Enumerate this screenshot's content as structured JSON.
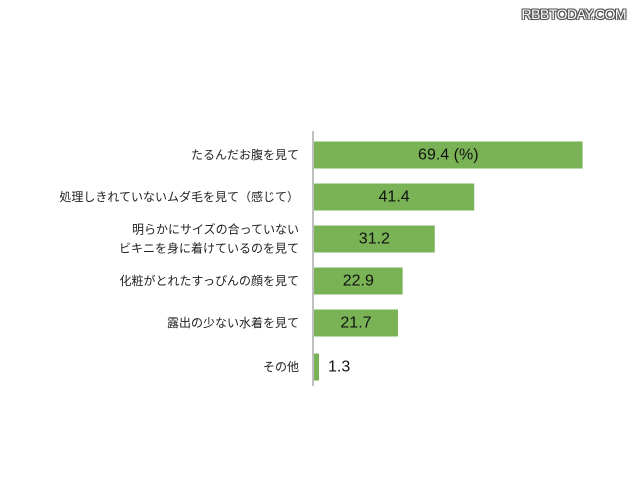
{
  "watermark": "RBBTODAY.COM",
  "chart_data": {
    "type": "bar",
    "orientation": "horizontal",
    "categories": [
      [
        "たるんだお腹を見て"
      ],
      [
        "処理しきれていないムダ毛を見て（感じて）"
      ],
      [
        "明らかにサイズの合っていない",
        "ビキニを身に着けているのを見て"
      ],
      [
        "化粧がとれたすっぴんの顔を見て"
      ],
      [
        "露出の少ない水着を見て"
      ],
      [
        "その他"
      ]
    ],
    "values": [
      69.4,
      41.4,
      31.2,
      22.9,
      21.7,
      1.3
    ],
    "data_labels": [
      "69.4 (%)",
      "41.4",
      "31.2",
      "22.9",
      "21.7",
      "1.3"
    ],
    "bar_color": "#7ab356",
    "xlim": [
      0,
      100
    ],
    "title": "",
    "xlabel": "",
    "ylabel": "",
    "grid": false,
    "legend": "none"
  }
}
